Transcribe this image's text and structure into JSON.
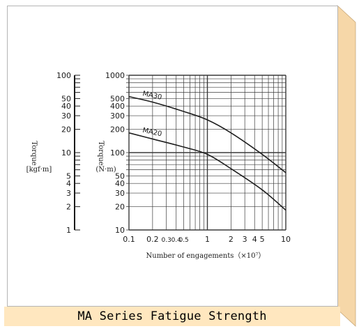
{
  "caption": "MA Series Fatigue Strength",
  "colors": {
    "frame_side": "#f6d7a8",
    "caption_band": "#ffe7bf",
    "panel_border": "#b5b5b5",
    "grid": "#3a3a3a",
    "curve": "#1f1f1f"
  },
  "chart_data": {
    "type": "line",
    "xlabel": "Number of engagements（×10⁷）",
    "x_scale": "log",
    "y_scale": "log",
    "xlim": [
      0.1,
      10
    ],
    "ylim": [
      10,
      1000
    ],
    "x_ticks": [
      {
        "value": 0.1,
        "label": "0.1"
      },
      {
        "value": 0.2,
        "label": "0.2"
      },
      {
        "value": 0.3,
        "label": "0.3"
      },
      {
        "value": 0.4,
        "label": "0.4"
      },
      {
        "value": 0.5,
        "label": "0.5"
      },
      {
        "value": 1,
        "label": "1"
      },
      {
        "value": 2,
        "label": "2"
      },
      {
        "value": 3,
        "label": "3"
      },
      {
        "value": 4,
        "label": "4"
      },
      {
        "value": 5,
        "label": "5"
      },
      {
        "value": 10,
        "label": "10"
      }
    ],
    "y_axis_right": {
      "label": "Torque",
      "unit": "(N·m)",
      "ticks": [
        "10",
        "20",
        "30",
        "40",
        "50",
        "100",
        "200",
        "300",
        "400",
        "500",
        "1000"
      ]
    },
    "y_axis_left": {
      "label": "Torque",
      "unit": "[kgf·m]",
      "lim": [
        1,
        100
      ],
      "ticks": [
        "1",
        "2",
        "3",
        "4",
        "5",
        "10",
        "20",
        "30",
        "40",
        "50",
        "100"
      ]
    },
    "grid": true,
    "series": [
      {
        "name": "MA30",
        "x": [
          0.1,
          0.2,
          0.5,
          1,
          2,
          5,
          10
        ],
        "y": [
          530,
          450,
          340,
          265,
          180,
          95,
          55
        ]
      },
      {
        "name": "MA20",
        "x": [
          0.1,
          0.2,
          0.5,
          1,
          2,
          5,
          10
        ],
        "y": [
          180,
          150,
          118,
          95,
          62,
          33,
          18
        ]
      }
    ]
  }
}
